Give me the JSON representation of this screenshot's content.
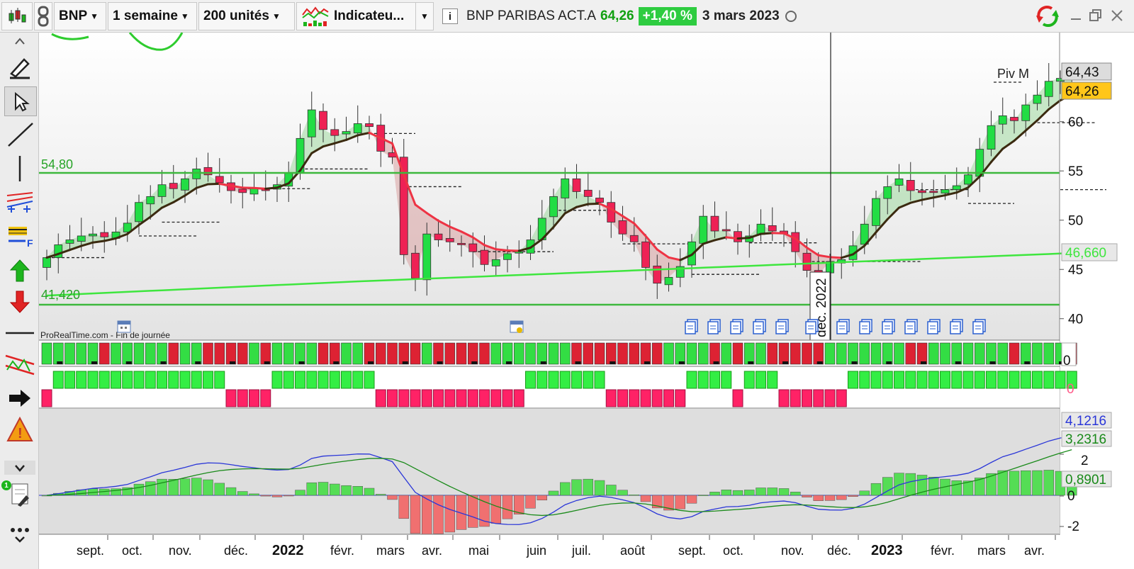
{
  "toolbar": {
    "symbol": "BNP",
    "period": "1 semaine",
    "units": "200 unités",
    "indicators": "Indicateu...",
    "instrument": "BNP PARIBAS ACT.A",
    "price": "64,26",
    "change": "+1,40 %",
    "date": "3 mars 2023"
  },
  "sidebar": {
    "tools": [
      "expand-up-icon",
      "pencil-icon",
      "cursor-icon",
      "line-icon",
      "vertical-line-icon",
      "fibonacci-icon",
      "horizontal-level-icon",
      "buy-arrow-icon",
      "sell-arrow-icon",
      "horizontal-line-icon",
      "trend-channel-icon",
      "order-arrow-icon",
      "alert-icon",
      "collapse-icon",
      "tools-icon",
      "more-icon"
    ],
    "badge": "1"
  },
  "chart": {
    "hline_high": "54,80",
    "hline_low": "41,420",
    "piv_label": "Piv M",
    "price_box_1": "64,43",
    "price_box_2": "64,26",
    "ma_box": "46,660",
    "y_ticks": [
      "60",
      "55",
      "50",
      "45",
      "40"
    ],
    "watermark": "ProRealTime.com - Fin de journée",
    "cursor_label": "déc. 2022",
    "ind1_label": "0",
    "ind2_label": "0",
    "macd_labels": [
      "4,1216",
      "3,2316",
      "0,8901",
      "0",
      "-2"
    ],
    "macd_ticks": [
      "2",
      "0",
      "-2"
    ],
    "x_labels": [
      "sept.",
      "oct.",
      "nov.",
      "déc.",
      "2022",
      "févr.",
      "mars",
      "avr.",
      "mai",
      "juin",
      "juil.",
      "août",
      "sept.",
      "oct.",
      "nov.",
      "déc.",
      "2023",
      "févr.",
      "mars",
      "avr."
    ]
  },
  "chart_data": {
    "type": "candlestick",
    "weekly_closes": [
      46.2,
      47.5,
      48.0,
      48.4,
      48.6,
      48.3,
      48.8,
      49.7,
      51.8,
      52.4,
      53.6,
      53.2,
      54.2,
      55.2,
      54.6,
      53.8,
      53.0,
      52.8,
      53.2,
      53.0,
      53.6,
      54.8,
      58.3,
      61.2,
      59.2,
      58.6,
      59.0,
      59.8,
      59.5,
      57.0,
      56.4,
      46.5,
      44.1,
      48.6,
      48.0,
      47.8,
      47.6,
      46.8,
      45.5,
      46.0,
      46.6,
      46.8,
      48.0,
      50.2,
      52.4,
      54.2,
      52.9,
      52.4,
      51.8,
      49.8,
      48.6,
      47.8,
      45.2,
      43.6,
      44.2,
      45.3,
      47.8,
      50.4,
      48.9,
      49.0,
      47.8,
      48.4,
      49.6,
      48.9,
      48.6,
      46.8,
      44.9,
      44.5,
      45.8,
      46.0,
      47.4,
      49.6,
      52.2,
      53.4,
      54.2,
      53.0,
      52.8,
      52.9,
      53.1,
      53.5,
      54.6,
      57.2,
      59.6,
      60.6,
      60.1,
      61.7,
      62.7,
      64.1,
      64.4,
      64.26
    ],
    "ma200_end": 46.66,
    "levels": [
      54.8,
      41.42
    ],
    "y_range": [
      38,
      68
    ]
  }
}
